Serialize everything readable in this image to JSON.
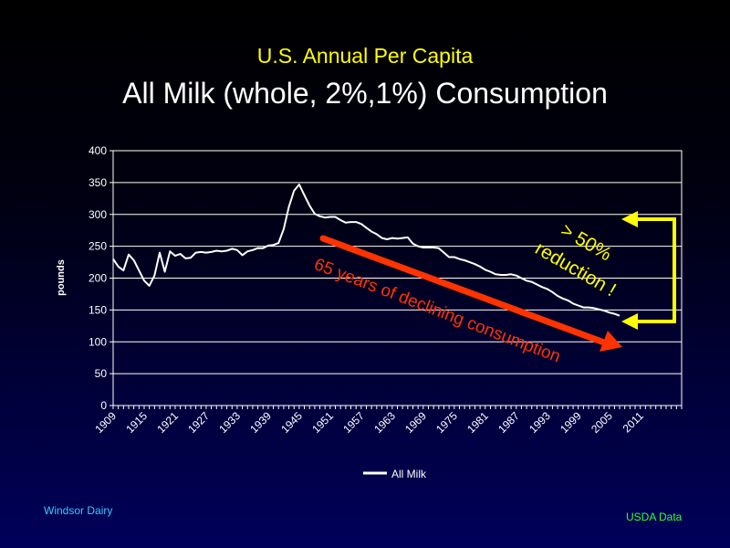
{
  "slide": {
    "subtitle": "U.S. Annual Per Capita",
    "title": "All Milk (whole, 2%,1%)  Consumption",
    "footer_left": "Windsor  Dairy",
    "footer_right": "USDA  Data"
  },
  "annotations": {
    "decline": "65 years of declining consumption",
    "reduction_line1": "> 50%",
    "reduction_line2": "reduction !"
  },
  "colors": {
    "subtitle": "#ffff00",
    "series": "#ffffff",
    "arrow": "#ff3300",
    "bracket": "#ffff00"
  },
  "chart_data": {
    "type": "line",
    "ylabel": "pounds",
    "ylim": [
      0,
      400
    ],
    "yticks": [
      0,
      50,
      100,
      150,
      200,
      250,
      300,
      350,
      400
    ],
    "xlim": [
      1909,
      2019
    ],
    "xticks": [
      1909,
      1915,
      1921,
      1927,
      1933,
      1939,
      1945,
      1951,
      1957,
      1963,
      1969,
      1975,
      1981,
      1987,
      1993,
      1999,
      2005,
      2011
    ],
    "grid": "horizontal",
    "legend": "bottom",
    "series": [
      {
        "name": "All Milk",
        "x": [
          1909,
          1910,
          1911,
          1912,
          1913,
          1914,
          1915,
          1916,
          1917,
          1918,
          1919,
          1920,
          1921,
          1922,
          1923,
          1924,
          1925,
          1926,
          1927,
          1928,
          1929,
          1930,
          1931,
          1932,
          1933,
          1934,
          1935,
          1936,
          1937,
          1938,
          1939,
          1940,
          1941,
          1942,
          1943,
          1944,
          1945,
          1946,
          1947,
          1948,
          1949,
          1950,
          1951,
          1952,
          1953,
          1954,
          1955,
          1956,
          1957,
          1958,
          1959,
          1960,
          1961,
          1962,
          1963,
          1964,
          1965,
          1966,
          1967,
          1968,
          1969,
          1970,
          1971,
          1972,
          1973,
          1974,
          1975,
          1976,
          1977,
          1978,
          1979,
          1980,
          1981,
          1982,
          1983,
          1984,
          1985,
          1986,
          1987,
          1988,
          1989,
          1990,
          1991,
          1992,
          1993,
          1994,
          1995,
          1996,
          1997,
          1998,
          1999,
          2000,
          2001,
          2002,
          2003,
          2004,
          2005,
          2006,
          2007
        ],
        "values": [
          230,
          218,
          212,
          237,
          228,
          212,
          196,
          188,
          204,
          240,
          210,
          242,
          235,
          238,
          231,
          232,
          240,
          241,
          240,
          241,
          243,
          242,
          243,
          246,
          244,
          236,
          242,
          244,
          247,
          247,
          251,
          252,
          255,
          277,
          312,
          337,
          347,
          330,
          314,
          301,
          297,
          295,
          296,
          296,
          291,
          287,
          288,
          288,
          285,
          279,
          273,
          269,
          263,
          261,
          263,
          262,
          263,
          264,
          254,
          250,
          248,
          248,
          248,
          247,
          240,
          233,
          233,
          230,
          228,
          225,
          222,
          218,
          213,
          210,
          206,
          205,
          205,
          206,
          204,
          200,
          196,
          194,
          190,
          186,
          183,
          178,
          172,
          168,
          165,
          160,
          157,
          154,
          154,
          153,
          151,
          149,
          146,
          144,
          141
        ]
      }
    ]
  }
}
